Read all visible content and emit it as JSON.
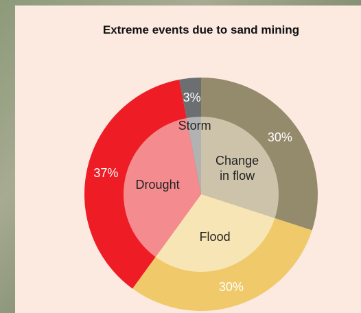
{
  "chart_data": {
    "type": "donut",
    "title": "Extreme events due to sand mining",
    "categories": [
      "Change in flow",
      "Flood",
      "Drought",
      "Storm"
    ],
    "values": [
      30,
      30,
      37,
      3
    ],
    "value_labels": [
      "30%",
      "30%",
      "37%",
      "3%"
    ],
    "colors": [
      "#948a6c",
      "#f0c96b",
      "#ee1c25",
      "#6d6e71"
    ],
    "inner_colors": [
      "#cdc3ab",
      "#f8e5b5",
      "#f48b8e",
      "#b3b2b3"
    ]
  }
}
